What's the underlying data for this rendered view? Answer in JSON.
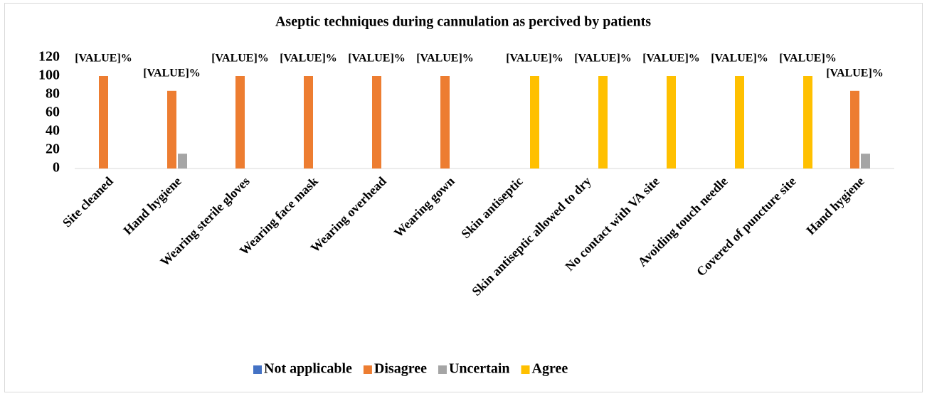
{
  "chart_data": {
    "type": "bar",
    "title": "Aseptic techniques during cannulation as percived by patients",
    "categories": [
      "Site cleaned",
      "Hand hygiene",
      "Wearing sterile gloves",
      "Wearing face mask",
      "Wearing overhead",
      "Wearing gown",
      "Skin antiseptic",
      "Skin antiseptic allowed to dry",
      "No contact with VA site",
      "Avoiding touch needle",
      "Covered of puncture site",
      "Hand hygiene"
    ],
    "series": [
      {
        "name": "Not applicable",
        "color": "#4472c4",
        "values": [
          0,
          0,
          0,
          0,
          0,
          0,
          0,
          0,
          0,
          0,
          0,
          0
        ]
      },
      {
        "name": "Disagree",
        "color": "#ed7d31",
        "values": [
          100,
          84,
          100,
          100,
          100,
          100,
          0,
          0,
          0,
          0,
          0,
          84
        ],
        "value_labels": [
          "[VALUE]%",
          "[VALUE]%",
          "[VALUE]%",
          "[VALUE]%",
          "[VALUE]%",
          "[VALUE]%",
          null,
          null,
          null,
          null,
          null,
          "[VALUE]%"
        ]
      },
      {
        "name": "Uncertain",
        "color": "#a5a5a5",
        "values": [
          0,
          16,
          0,
          0,
          0,
          0,
          0,
          0,
          0,
          0,
          0,
          16
        ]
      },
      {
        "name": "Agree",
        "color": "#ffc000",
        "values": [
          0,
          0,
          0,
          0,
          0,
          0,
          100,
          100,
          100,
          100,
          100,
          0
        ],
        "value_labels": [
          null,
          null,
          null,
          null,
          null,
          null,
          "[VALUE]%",
          "[VALUE]%",
          "[VALUE]%",
          "[VALUE]%",
          "[VALUE]%",
          null
        ]
      }
    ],
    "ylim": [
      0,
      120
    ],
    "yticks": [
      0,
      20,
      40,
      60,
      80,
      100,
      120
    ],
    "grid": false,
    "legend": "bottom"
  }
}
